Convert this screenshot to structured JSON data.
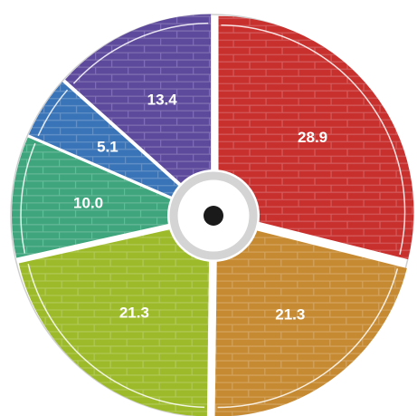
{
  "chart_data": {
    "type": "pie",
    "style": "donut with brick texture",
    "start_angle_deg": 0,
    "direction": "clockwise",
    "slices": [
      {
        "value": 28.9,
        "label": "28.9",
        "color": "#c8302e"
      },
      {
        "value": 21.3,
        "label": "21.3",
        "color": "#c68a32"
      },
      {
        "value": 21.3,
        "label": "21.3",
        "color": "#9cba2a"
      },
      {
        "value": 10.0,
        "label": "10.0",
        "color": "#3ea57c"
      },
      {
        "value": 5.1,
        "label": "5.1",
        "color": "#3a74b8"
      },
      {
        "value": 13.4,
        "label": "13.4",
        "color": "#5e4a9c"
      }
    ],
    "center_color": "#1a1a1a",
    "ring_color": "#d9d9d9"
  }
}
